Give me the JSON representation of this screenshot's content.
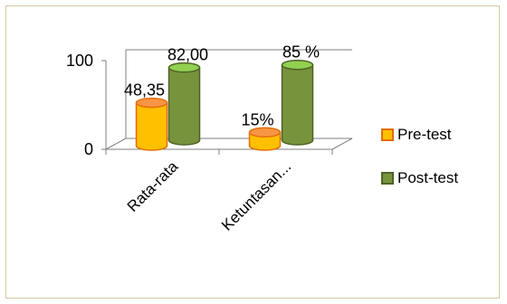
{
  "chart_data": {
    "type": "bar",
    "categories": [
      "Rata-rata",
      "Ketuntasan..."
    ],
    "series": [
      {
        "name": "Pre-test",
        "values": [
          48.35,
          15
        ],
        "labels": [
          "48,35",
          "15%"
        ]
      },
      {
        "name": "Post-test",
        "values": [
          82.0,
          85
        ],
        "labels": [
          "82,00",
          "85 %"
        ]
      }
    ],
    "yticks": [
      "0",
      "100"
    ],
    "ylim": [
      0,
      100
    ],
    "legend_position": "right",
    "colors": {
      "pre_fill": "#ffc000",
      "pre_edge": "#e46c0a",
      "pre_side": "#f79646",
      "post_fill": "#77933c",
      "post_edge": "#4f6228",
      "post_light": "#92d050",
      "frame": "#d9c8a2",
      "axis": "#7f7f7f"
    }
  }
}
